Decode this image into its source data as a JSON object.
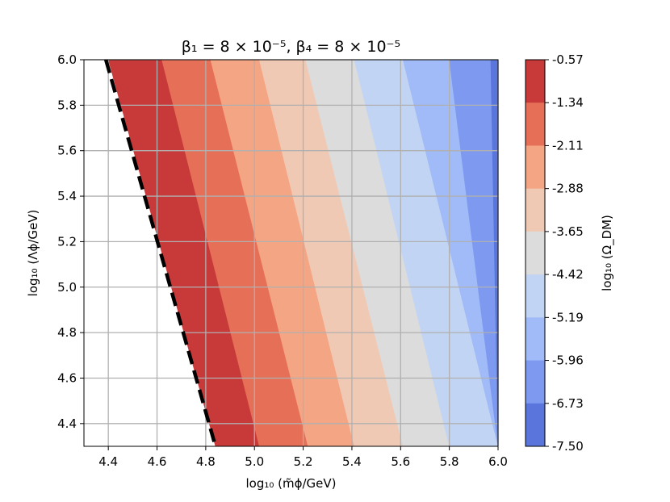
{
  "chart_data": {
    "type": "contour",
    "title": "β₁ = 8 × 10⁻⁵, β₄ = 8 × 10⁻⁵",
    "xlabel": "log₁₀ (m̃ϕ/GeV)",
    "ylabel": "log₁₀ (Λϕ/GeV)",
    "xlim": [
      4.3,
      6.0
    ],
    "ylim": [
      4.3,
      6.0
    ],
    "xticks": [
      "4.4",
      "4.6",
      "4.8",
      "5.0",
      "5.2",
      "5.4",
      "5.6",
      "5.8",
      "6.0"
    ],
    "yticks": [
      "4.4",
      "4.6",
      "4.8",
      "5.0",
      "5.2",
      "5.4",
      "5.6",
      "5.8",
      "6.0"
    ],
    "grid": true,
    "colorbar": {
      "label": "log₁₀ (Ω_DM)",
      "levels": [
        "-0.57",
        "-1.34",
        "-2.11",
        "-2.88",
        "-3.65",
        "-4.42",
        "-5.19",
        "-5.96",
        "-6.73",
        "-7.50"
      ],
      "colors": [
        "#c83a3a",
        "#e57057",
        "#f4a583",
        "#f0c9b4",
        "#dcdcdc",
        "#c2d4f3",
        "#a0bbf7",
        "#7d9af0",
        "#5a76dd"
      ]
    },
    "bands": [
      {
        "level_range": [
          "-0.57",
          "-1.34"
        ],
        "top_x": [
          4.4,
          4.62
        ],
        "bottom_x": [
          4.84,
          5.02
        ]
      },
      {
        "level_range": [
          "-1.34",
          "-2.11"
        ],
        "top_x": [
          4.62,
          4.82
        ],
        "bottom_x": [
          5.02,
          5.22
        ]
      },
      {
        "level_range": [
          "-2.11",
          "-2.88"
        ],
        "top_x": [
          4.82,
          5.02
        ],
        "bottom_x": [
          5.22,
          5.41
        ]
      },
      {
        "level_range": [
          "-2.88",
          "-3.65"
        ],
        "top_x": [
          5.02,
          5.21
        ],
        "bottom_x": [
          5.41,
          5.61
        ]
      },
      {
        "level_range": [
          "-3.65",
          "-4.42"
        ],
        "top_x": [
          5.21,
          5.41
        ],
        "bottom_x": [
          5.61,
          5.8
        ]
      },
      {
        "level_range": [
          "-4.42",
          "-5.19"
        ],
        "top_x": [
          5.41,
          5.61
        ],
        "bottom_x": [
          5.8,
          6.0
        ]
      },
      {
        "level_range": [
          "-5.19",
          "-5.96"
        ],
        "top_x": [
          5.61,
          5.8
        ],
        "bottom_x": [
          6.0,
          6.0
        ]
      },
      {
        "level_range": [
          "-5.96",
          "-6.73"
        ],
        "top_x": [
          5.8,
          5.97
        ],
        "bottom_x": [
          6.0,
          6.0
        ]
      },
      {
        "level_range": [
          "-6.73",
          "-7.50"
        ],
        "top_x": [
          5.97,
          6.0
        ],
        "bottom_x": [
          6.0,
          6.0
        ]
      }
    ],
    "boundary_line": {
      "style": "dashed",
      "color": "#000000",
      "x_at_ymax": 4.39,
      "x_at_ymin": 4.84
    },
    "excluded_region": "white (left of boundary)"
  }
}
